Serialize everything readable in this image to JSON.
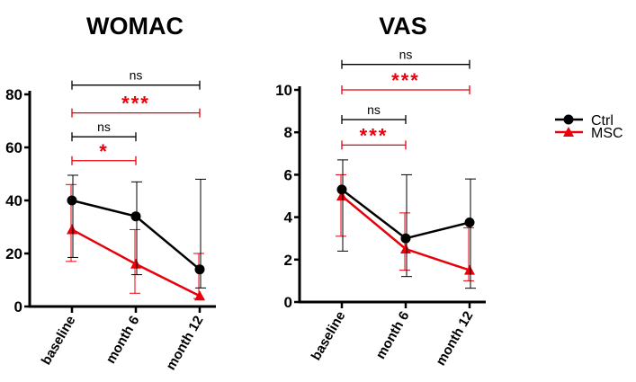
{
  "colors": {
    "Ctrl": "#000000",
    "MSC": "#e8000b"
  },
  "legend": {
    "position": "right",
    "items": [
      {
        "name": "Ctrl",
        "marker": "circle"
      },
      {
        "name": "MSC",
        "marker": "triangle"
      }
    ]
  },
  "chart_data": [
    {
      "type": "line",
      "title": "WOMAC",
      "categories": [
        "baseline",
        "month 6",
        "month 12"
      ],
      "ylim": [
        0,
        80
      ],
      "yticks": [
        0,
        20,
        40,
        60,
        80
      ],
      "series": [
        {
          "name": "Ctrl",
          "values": [
            40,
            34,
            14
          ],
          "err_low": [
            18.5,
            12,
            7
          ],
          "err_high": [
            49.5,
            47,
            48
          ]
        },
        {
          "name": "MSC",
          "values": [
            29,
            16,
            4
          ],
          "err_low": [
            17,
            5,
            3
          ],
          "err_high": [
            46,
            29,
            20
          ]
        }
      ],
      "annotations": [
        {
          "text": "ns",
          "from": "baseline",
          "to": "month 12",
          "series": "Ctrl",
          "level": 83.5
        },
        {
          "text": "***",
          "from": "baseline",
          "to": "month 12",
          "series": "MSC",
          "level": 73
        },
        {
          "text": "ns",
          "from": "baseline",
          "to": "month 6",
          "series": "Ctrl",
          "level": 64
        },
        {
          "text": "*",
          "from": "baseline",
          "to": "month 6",
          "series": "MSC",
          "level": 55
        }
      ]
    },
    {
      "type": "line",
      "title": "VAS",
      "categories": [
        "baseline",
        "month 6",
        "month 12"
      ],
      "ylim": [
        0,
        10
      ],
      "yticks": [
        0,
        2,
        4,
        6,
        8,
        10
      ],
      "series": [
        {
          "name": "Ctrl",
          "values": [
            5.3,
            3.0,
            3.75
          ],
          "err_low": [
            2.4,
            1.2,
            0.65
          ],
          "err_high": [
            6.7,
            6.0,
            5.8
          ]
        },
        {
          "name": "MSC",
          "values": [
            5.0,
            2.5,
            1.5
          ],
          "err_low": [
            3.1,
            1.5,
            1.0
          ],
          "err_high": [
            6.0,
            4.2,
            3.5
          ]
        }
      ],
      "annotations": [
        {
          "text": "ns",
          "from": "baseline",
          "to": "month 12",
          "series": "Ctrl",
          "level": 11.2
        },
        {
          "text": "***",
          "from": "baseline",
          "to": "month 12",
          "series": "MSC",
          "level": 10
        },
        {
          "text": "ns",
          "from": "baseline",
          "to": "month 6",
          "series": "Ctrl",
          "level": 8.6
        },
        {
          "text": "***",
          "from": "baseline",
          "to": "month 6",
          "series": "MSC",
          "level": 7.4
        }
      ]
    }
  ]
}
